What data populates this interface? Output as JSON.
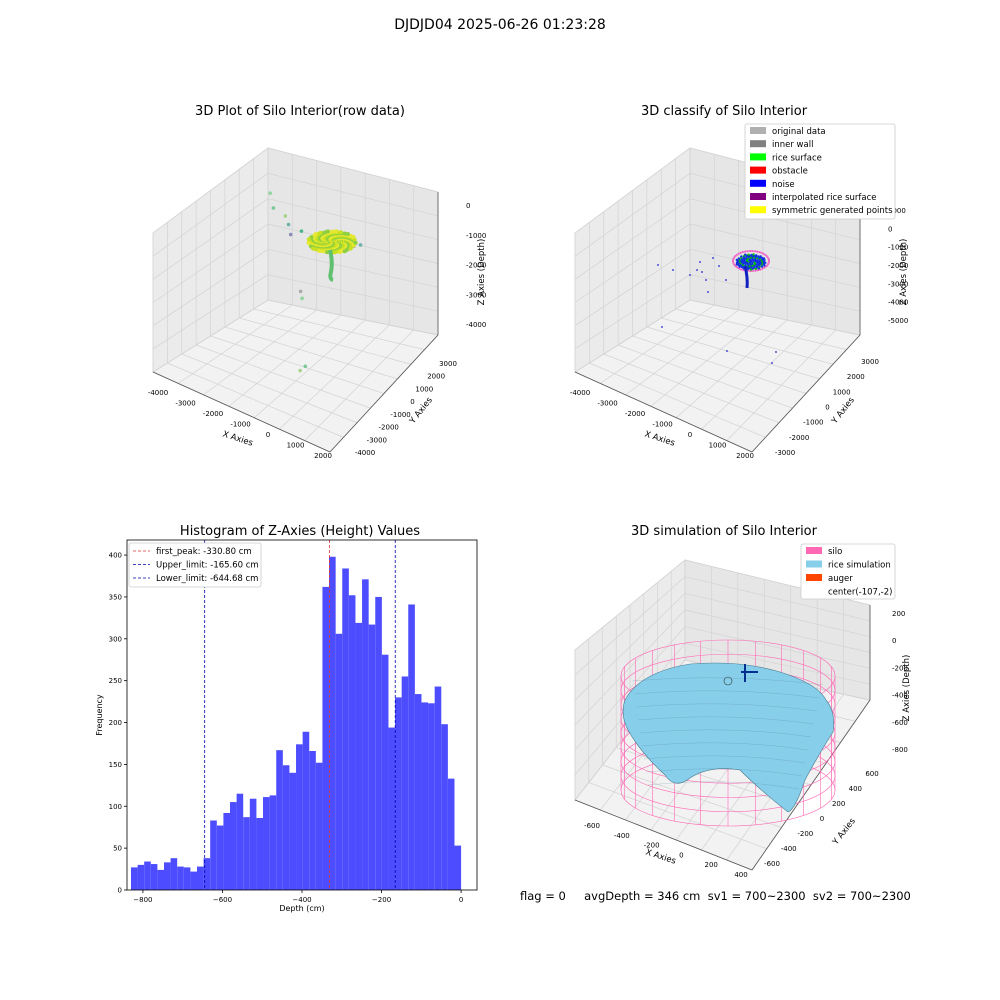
{
  "figure_title": "DJDJD04 2025-06-26 01:23:28",
  "bottom_text": "flag = 0     avgDepth = 346 cm  sv1 = 700~2300  sv2 = 700~2300",
  "colors": {
    "histogram": "#4d4dff",
    "peak_line": "#e03030",
    "limit_line": "#0000b0",
    "silo": "#ff69b4",
    "rice_simulation": "#87ceeb",
    "auger": "#ff4500"
  },
  "chart_data": [
    {
      "type": "scatter",
      "title": "3D Plot of Silo Interior(row data)",
      "xlabel": "X Axies",
      "ylabel": "Y Axies",
      "zlabel": "Z Axies (Depth)",
      "x_ticks": [
        "-4000",
        "-3000",
        "-2000",
        "-1000",
        "0",
        "1000",
        "2000"
      ],
      "y_ticks": [
        "-4000",
        "-3000",
        "-2000",
        "-1000",
        "0",
        "1000",
        "2000",
        "3000"
      ],
      "z_ticks": [
        "0",
        "-1000",
        "-2000",
        "-3000",
        "-4000"
      ],
      "outlier_points_xyz": [
        [
          -3000,
          1500,
          -300
        ],
        [
          -2700,
          1200,
          -600
        ],
        [
          -2300,
          1300,
          -800
        ],
        [
          -2000,
          1000,
          -900
        ],
        [
          -1800,
          800,
          -1100
        ],
        [
          -1500,
          1000,
          -1000
        ],
        [
          -1200,
          400,
          -2600
        ],
        [
          -800,
          -200,
          -2500
        ],
        [
          200,
          -1800,
          -3700
        ],
        [
          400,
          -2500,
          -3500
        ],
        [
          1200,
          300,
          -600
        ],
        [
          1300,
          -300,
          -400
        ],
        [
          1500,
          -900,
          -200
        ]
      ]
    },
    {
      "type": "scatter",
      "title": "3D classify of Silo Interior",
      "xlabel": "X Axies",
      "ylabel": "Y Axies",
      "zlabel": "Z Axies (Depth)",
      "x_ticks": [
        "-4000",
        "-3000",
        "-2000",
        "-1000",
        "0",
        "1000",
        "2000"
      ],
      "y_ticks": [
        "-3000",
        "-2000",
        "-1000",
        "0",
        "1000",
        "2000",
        "3000"
      ],
      "z_ticks": [
        "1000",
        "0",
        "-1000",
        "-2000",
        "-3000",
        "-4000",
        "-5000"
      ],
      "legend": [
        {
          "label": "original data",
          "color": "#b0b0b0"
        },
        {
          "label": "inner wall",
          "color": "#808080"
        },
        {
          "label": "rice surface",
          "color": "#00ff00"
        },
        {
          "label": "obstacle",
          "color": "#ff0000"
        },
        {
          "label": "noise",
          "color": "#0000ff"
        },
        {
          "label": "interpolated rice surface",
          "color": "#800080"
        },
        {
          "label": "symmetric generated points",
          "color": "#ffff00"
        }
      ]
    },
    {
      "type": "bar",
      "title": "Histogram of Z-Axies (Height) Values",
      "xlabel": "Depth (cm)",
      "ylabel": "Frequency",
      "xlim": [
        -840,
        40
      ],
      "ylim": [
        0,
        418
      ],
      "x_ticks": [
        -800,
        -600,
        -400,
        -200,
        0
      ],
      "y_ticks": [
        0,
        50,
        100,
        150,
        200,
        250,
        300,
        350,
        400
      ],
      "bin_start": -830,
      "bin_width": 16.6,
      "values": [
        27,
        30,
        34,
        31,
        24,
        33,
        38,
        28,
        27,
        22,
        28,
        38,
        83,
        77,
        92,
        105,
        115,
        87,
        109,
        86,
        111,
        113,
        167,
        149,
        140,
        174,
        189,
        166,
        152,
        362,
        398,
        306,
        384,
        352,
        319,
        371,
        317,
        350,
        281,
        194,
        230,
        255,
        341,
        234,
        224,
        223,
        243,
        198,
        133,
        53
      ],
      "vlines": [
        {
          "label": "first_peak: -330.80 cm",
          "x": -330.8,
          "style": "peak"
        },
        {
          "label": "Upper_limit: -165.60 cm",
          "x": -165.6,
          "style": "limit"
        },
        {
          "label": "Lower_limit: -644.68 cm",
          "x": -644.68,
          "style": "limit"
        }
      ]
    },
    {
      "type": "area",
      "title": "3D simulation of Silo Interior",
      "xlabel": "X Axies",
      "ylabel": "Y Axies",
      "zlabel": "Z Axies (Depth)",
      "x_ticks": [
        "-600",
        "-400",
        "-200",
        "0",
        "200",
        "400"
      ],
      "y_ticks": [
        "-600",
        "-400",
        "-200",
        "0",
        "200",
        "400",
        "600"
      ],
      "z_ticks": [
        "200",
        "0",
        "-200",
        "-400",
        "-600",
        "-800"
      ],
      "legend": [
        {
          "label": "silo",
          "color": "#ff69b4"
        },
        {
          "label": "rice simulation",
          "color": "#87ceeb"
        },
        {
          "label": "auger",
          "color": "#ff4500"
        },
        {
          "label": "center(-107,-2)",
          "color": ""
        }
      ]
    }
  ]
}
